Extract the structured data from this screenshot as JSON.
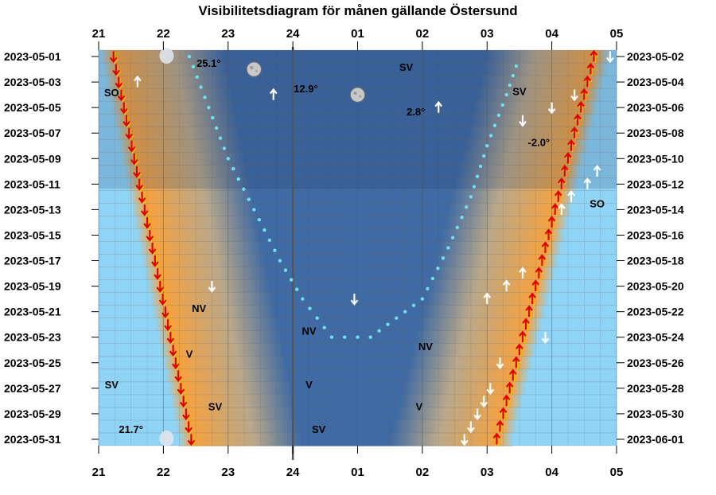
{
  "chart_data": {
    "type": "heatmap",
    "title": "Visibilitetsdiagram för månen gällande Östersund",
    "hour_labels": [
      "21",
      "22",
      "23",
      "24",
      "01",
      "02",
      "03",
      "04",
      "05"
    ],
    "x_range_hours": [
      21,
      29
    ],
    "left_dates": [
      "2023-05-01",
      "2023-05-03",
      "2023-05-05",
      "2023-05-07",
      "2023-05-09",
      "2023-05-11",
      "2023-05-13",
      "2023-05-15",
      "2023-05-17",
      "2023-05-19",
      "2023-05-21",
      "2023-05-23",
      "2023-05-25",
      "2023-05-27",
      "2023-05-29",
      "2023-05-31"
    ],
    "right_dates": [
      "2023-05-02",
      "2023-05-04",
      "2023-05-06",
      "2023-05-08",
      "2023-05-10",
      "2023-05-12",
      "2023-05-14",
      "2023-05-16",
      "2023-05-18",
      "2023-05-20",
      "2023-05-22",
      "2023-05-24",
      "2023-05-26",
      "2023-05-28",
      "2023-05-30",
      "2023-06-01"
    ],
    "rows": 31,
    "sunset_hours": [
      21.28,
      21.32,
      21.36,
      21.4,
      21.44,
      21.48,
      21.52,
      21.56,
      21.6,
      21.64,
      21.68,
      21.72,
      21.76,
      21.8,
      21.84,
      21.88,
      21.92,
      21.96,
      22.0,
      22.04,
      22.08,
      22.12,
      22.16,
      22.2,
      22.24,
      22.28,
      22.32,
      22.36,
      22.4,
      22.44,
      22.48
    ],
    "sunrise_hours": [
      28.65,
      28.6,
      28.55,
      28.5,
      28.45,
      28.4,
      28.35,
      28.3,
      28.25,
      28.2,
      28.15,
      28.1,
      28.05,
      28.0,
      27.95,
      27.9,
      27.85,
      27.8,
      27.75,
      27.7,
      27.65,
      27.6,
      27.55,
      27.5,
      27.45,
      27.4,
      27.35,
      27.3,
      27.25,
      27.2,
      27.15
    ],
    "moon_track": [
      {
        "row": 0,
        "hour": 22.4
      },
      {
        "row": 4,
        "hour": 22.7
      },
      {
        "row": 8,
        "hour": 23.0
      },
      {
        "row": 12,
        "hour": 23.4
      },
      {
        "row": 16,
        "hour": 23.8
      },
      {
        "row": 19,
        "hour": 24.15
      },
      {
        "row": 22,
        "hour": 24.6
      },
      {
        "row": 22,
        "hour": 25.2
      },
      {
        "row": 19,
        "hour": 26.0
      },
      {
        "row": 15,
        "hour": 26.4
      },
      {
        "row": 11,
        "hour": 26.75
      },
      {
        "row": 7,
        "hour": 27.0
      },
      {
        "row": 3,
        "hour": 27.3
      },
      {
        "row": 0,
        "hour": 27.5
      }
    ],
    "moon_icons": [
      {
        "row": 0,
        "hour": 22.05,
        "phase": "full"
      },
      {
        "row": 1,
        "hour": 23.4,
        "phase": "gibbous"
      },
      {
        "row": 3,
        "hour": 25.0,
        "phase": "gibbous"
      },
      {
        "row": 30,
        "hour": 22.05,
        "phase": "full"
      }
    ],
    "annotations": [
      {
        "text": "25.1°",
        "row": 0.5,
        "hour": 22.7
      },
      {
        "text": "12.9°",
        "row": 2.5,
        "hour": 24.2
      },
      {
        "text": "2.8°",
        "row": 4.3,
        "hour": 25.9
      },
      {
        "text": "-2.0°",
        "row": 6.7,
        "hour": 27.8
      },
      {
        "text": "SV",
        "row": 0.8,
        "hour": 25.75
      },
      {
        "text": "SV",
        "row": 2.7,
        "hour": 27.5
      },
      {
        "text": "SO",
        "row": 2.8,
        "hour": 21.2
      },
      {
        "text": "SO",
        "row": 11.5,
        "hour": 28.7
      },
      {
        "text": "NV",
        "row": 19.7,
        "hour": 22.55
      },
      {
        "text": "NV",
        "row": 21.5,
        "hour": 24.25
      },
      {
        "text": "NV",
        "row": 22.7,
        "hour": 26.05
      },
      {
        "text": "V",
        "row": 23.3,
        "hour": 22.4
      },
      {
        "text": "V",
        "row": 25.7,
        "hour": 24.25
      },
      {
        "text": "V",
        "row": 27.4,
        "hour": 25.95
      },
      {
        "text": "SV",
        "row": 25.7,
        "hour": 21.2
      },
      {
        "text": "SV",
        "row": 27.4,
        "hour": 22.8
      },
      {
        "text": "SV",
        "row": 29.2,
        "hour": 24.4
      },
      {
        "text": "21.7°",
        "row": 29.2,
        "hour": 21.5
      }
    ],
    "white_arrows": [
      {
        "row": 2,
        "hour": 21.6,
        "dir": "up"
      },
      {
        "row": 3,
        "hour": 23.7,
        "dir": "up"
      },
      {
        "row": 4,
        "hour": 26.25,
        "dir": "up"
      },
      {
        "row": 5,
        "hour": 27.55,
        "dir": "down"
      },
      {
        "row": 4,
        "hour": 28.0,
        "dir": "down"
      },
      {
        "row": 3,
        "hour": 28.35,
        "dir": "down"
      },
      {
        "row": 0,
        "hour": 28.9,
        "dir": "down"
      },
      {
        "row": 9,
        "hour": 28.7,
        "dir": "up"
      },
      {
        "row": 10,
        "hour": 28.55,
        "dir": "up"
      },
      {
        "row": 11,
        "hour": 28.3,
        "dir": "up"
      },
      {
        "row": 12,
        "hour": 28.15,
        "dir": "up"
      },
      {
        "row": 18,
        "hour": 22.75,
        "dir": "down"
      },
      {
        "row": 19,
        "hour": 24.95,
        "dir": "down"
      },
      {
        "row": 18,
        "hour": 27.3,
        "dir": "up"
      },
      {
        "row": 19,
        "hour": 27.0,
        "dir": "up"
      },
      {
        "row": 17,
        "hour": 27.55,
        "dir": "up"
      },
      {
        "row": 22,
        "hour": 27.9,
        "dir": "down"
      },
      {
        "row": 24,
        "hour": 27.2,
        "dir": "down"
      },
      {
        "row": 26,
        "hour": 27.05,
        "dir": "down"
      },
      {
        "row": 27,
        "hour": 26.95,
        "dir": "down"
      },
      {
        "row": 28,
        "hour": 26.85,
        "dir": "down"
      },
      {
        "row": 29,
        "hour": 26.75,
        "dir": "down"
      },
      {
        "row": 30,
        "hour": 26.65,
        "dir": "down"
      }
    ],
    "colors": {
      "day": "#8fd3f5",
      "twilight": "#f7a23d",
      "night": "#3f6aa3",
      "moonlit": "#7fa9d8",
      "sun_arrow": "#e00000",
      "moon_dot": "#6fe0f0",
      "midnight_line": "#555555"
    }
  }
}
